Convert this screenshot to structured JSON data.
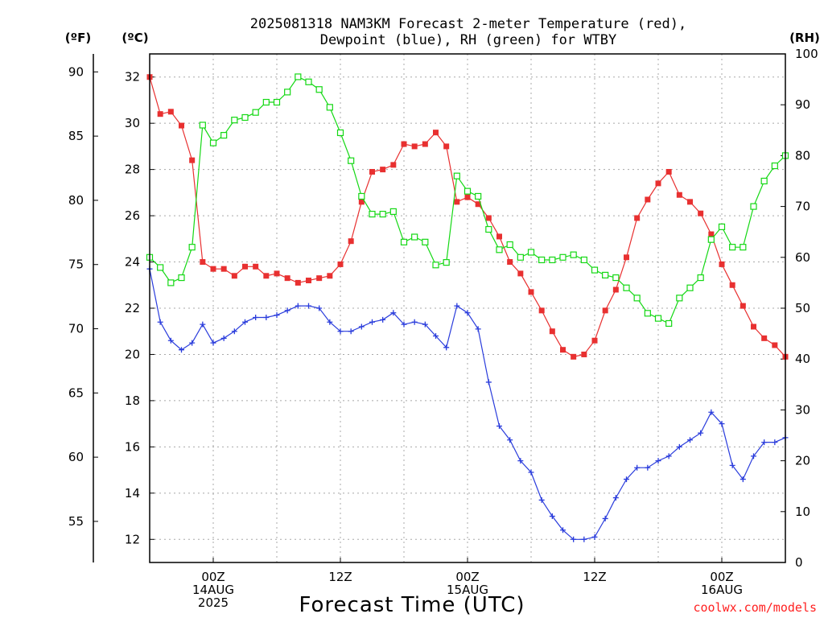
{
  "chart_data": {
    "type": "line",
    "title_line1": "2025081318 NAM3KM Forecast 2-meter Temperature (red),",
    "title_line2": "Dewpoint (blue), RH (green) for WTBY",
    "xlabel": "Forecast Time (UTC)",
    "credit": "coolwx.com/models",
    "unit_f": "(ºF)",
    "unit_c": "(ºC)",
    "unit_rh": "(RH)",
    "x_hours_range": [
      -6,
      54
    ],
    "yc_range": [
      11,
      33
    ],
    "yrh_range": [
      0,
      100
    ],
    "f_ticks": [
      "90",
      "85",
      "80",
      "75",
      "70",
      "65",
      "60",
      "55"
    ],
    "f_tick_values": [
      90,
      85,
      80,
      75,
      70,
      65,
      60,
      55
    ],
    "c_ticks": [
      "32",
      "30",
      "28",
      "26",
      "24",
      "22",
      "20",
      "18",
      "16",
      "14",
      "12"
    ],
    "c_tick_values": [
      32,
      30,
      28,
      26,
      24,
      22,
      20,
      18,
      16,
      14,
      12
    ],
    "rh_ticks": [
      "100",
      "90",
      "80",
      "70",
      "60",
      "50",
      "40",
      "30",
      "20",
      "10",
      "0"
    ],
    "rh_tick_values": [
      100,
      90,
      80,
      70,
      60,
      50,
      40,
      30,
      20,
      10,
      0
    ],
    "x_ticks": [
      {
        "hour": 0,
        "lines": [
          "00Z",
          "14AUG",
          "2025"
        ]
      },
      {
        "hour": 12,
        "lines": [
          "12Z"
        ]
      },
      {
        "hour": 24,
        "lines": [
          "00Z",
          "15AUG"
        ]
      },
      {
        "hour": 36,
        "lines": [
          "12Z"
        ]
      },
      {
        "hour": 48,
        "lines": [
          "00Z",
          "16AUG"
        ]
      }
    ],
    "series": [
      {
        "name": "2-meter Temperature",
        "color": "#e83030",
        "marker": "filled-square",
        "axis": "C",
        "x": [
          -6,
          -5,
          -4,
          -3,
          -2,
          -1,
          0,
          1,
          2,
          3,
          4,
          5,
          6,
          7,
          8,
          9,
          10,
          11,
          12,
          13,
          14,
          15,
          16,
          17,
          18,
          19,
          20,
          21,
          22,
          23,
          24,
          25,
          26,
          27,
          28,
          29,
          30,
          31,
          32,
          33,
          34,
          35,
          36,
          37,
          38,
          39,
          40,
          41,
          42,
          43,
          44,
          45,
          46,
          47,
          48,
          49,
          50,
          51,
          52,
          53,
          54
        ],
        "values": [
          32.0,
          30.4,
          30.5,
          29.9,
          28.4,
          24.0,
          23.7,
          23.7,
          23.4,
          23.8,
          23.8,
          23.4,
          23.5,
          23.3,
          23.1,
          23.2,
          23.3,
          23.4,
          23.9,
          24.9,
          26.6,
          27.9,
          28.0,
          28.2,
          29.1,
          29.0,
          29.1,
          29.6,
          29.0,
          26.6,
          26.8,
          26.5,
          25.9,
          25.1,
          24.0,
          23.5,
          22.7,
          21.9,
          21.0,
          20.2,
          19.9,
          20.0,
          20.6,
          21.9,
          22.8,
          24.2,
          25.9,
          26.7,
          27.4,
          27.9,
          26.9,
          26.6,
          26.1,
          25.2,
          23.9,
          23.0,
          22.1,
          21.2,
          20.7,
          20.4,
          19.9
        ]
      },
      {
        "name": "Dewpoint",
        "color": "#2a3cdc",
        "marker": "plus",
        "axis": "C",
        "x": [
          -6,
          -5,
          -4,
          -3,
          -2,
          -1,
          0,
          1,
          2,
          3,
          4,
          5,
          6,
          7,
          8,
          9,
          10,
          11,
          12,
          13,
          14,
          15,
          16,
          17,
          18,
          19,
          20,
          21,
          22,
          23,
          24,
          25,
          26,
          27,
          28,
          29,
          30,
          31,
          32,
          33,
          34,
          35,
          36,
          37,
          38,
          39,
          40,
          41,
          42,
          43,
          44,
          45,
          46,
          47,
          48,
          49,
          50,
          51,
          52,
          53,
          54
        ],
        "values": [
          23.7,
          21.4,
          20.6,
          20.2,
          20.5,
          21.3,
          20.5,
          20.7,
          21.0,
          21.4,
          21.6,
          21.6,
          21.7,
          21.9,
          22.1,
          22.1,
          22.0,
          21.4,
          21.0,
          21.0,
          21.2,
          21.4,
          21.5,
          21.8,
          21.3,
          21.4,
          21.3,
          20.8,
          20.3,
          22.1,
          21.8,
          21.1,
          18.8,
          16.9,
          16.3,
          15.4,
          14.9,
          13.7,
          13.0,
          12.4,
          12.0,
          12.0,
          12.1,
          12.9,
          13.8,
          14.6,
          15.1,
          15.1,
          15.4,
          15.6,
          16.0,
          16.3,
          16.6,
          17.5,
          17.0,
          15.2,
          14.6,
          15.6,
          16.2,
          16.2,
          16.4
        ]
      },
      {
        "name": "RH",
        "color": "#14d814",
        "marker": "open-square",
        "axis": "RH",
        "x": [
          -6,
          -5,
          -4,
          -3,
          -2,
          -1,
          0,
          1,
          2,
          3,
          4,
          5,
          6,
          7,
          8,
          9,
          10,
          11,
          12,
          13,
          14,
          15,
          16,
          17,
          18,
          19,
          20,
          21,
          22,
          23,
          24,
          25,
          26,
          27,
          28,
          29,
          30,
          31,
          32,
          33,
          34,
          35,
          36,
          37,
          38,
          39,
          40,
          41,
          42,
          43,
          44,
          45,
          46,
          47,
          48,
          49,
          50,
          51,
          52,
          53,
          54
        ],
        "values": [
          60.0,
          58.0,
          55.0,
          56.0,
          62.0,
          86.0,
          82.5,
          84.0,
          87.0,
          87.5,
          88.5,
          90.5,
          90.5,
          92.5,
          95.5,
          94.5,
          93.0,
          89.5,
          84.5,
          79.0,
          72.0,
          68.5,
          68.5,
          69.0,
          63.0,
          64.0,
          63.0,
          58.5,
          59.0,
          76.0,
          73.0,
          72.0,
          65.5,
          61.5,
          62.5,
          60.0,
          61.0,
          59.5,
          59.5,
          60.0,
          60.5,
          59.5,
          57.5,
          56.5,
          56.0,
          54.0,
          52.0,
          49.0,
          48.0,
          47.0,
          52.0,
          54.0,
          56.0,
          63.5,
          66.0,
          62.0,
          62.0,
          70.0,
          75.0,
          78.0,
          80.0
        ]
      }
    ]
  }
}
